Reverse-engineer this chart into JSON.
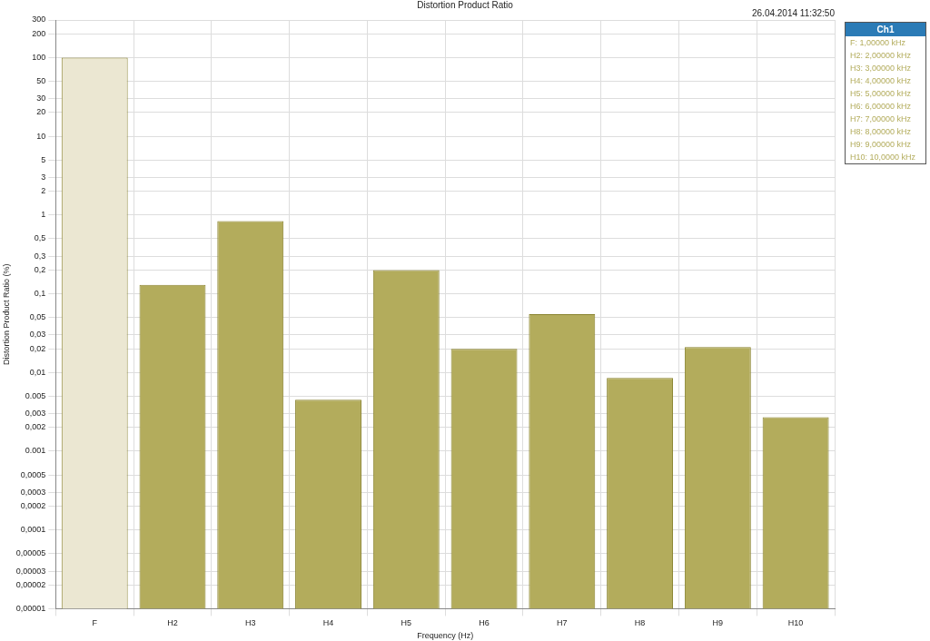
{
  "chart_data": {
    "type": "bar",
    "title": "Distortion Product Ratio",
    "xlabel": "Frequency (Hz)",
    "ylabel": "Distortion Product Ratio (%)",
    "categories": [
      "F",
      "H2",
      "H3",
      "H4",
      "H5",
      "H6",
      "H7",
      "H8",
      "H9",
      "H10"
    ],
    "series": [
      {
        "name": "Ch1",
        "color": "#b3ac5c",
        "colors": [
          "#ebe7d2",
          "#b3ac5c",
          "#b3ac5c",
          "#b3ac5c",
          "#b3ac5c",
          "#b3ac5c",
          "#b3ac5c",
          "#b3ac5c",
          "#b3ac5c",
          "#b3ac5c"
        ],
        "values": [
          100,
          0.13,
          0.84,
          0.0045,
          0.2,
          0.02,
          0.055,
          0.0085,
          0.021,
          0.0027
        ]
      }
    ],
    "log": "y",
    "ylim": [
      1e-05,
      300
    ],
    "yticks": [
      300,
      200,
      100,
      50,
      30,
      20,
      10,
      5,
      3,
      2,
      1,
      {
        "value": 0.5,
        "label": "0,5"
      },
      {
        "value": 0.3,
        "label": "0,3"
      },
      {
        "value": 0.2,
        "label": "0,2"
      },
      {
        "value": 0.1,
        "label": "0,1"
      },
      {
        "value": 0.05,
        "label": "0,05"
      },
      {
        "value": 0.03,
        "label": "0,03"
      },
      {
        "value": 0.02,
        "label": "0,02"
      },
      {
        "value": 0.01,
        "label": "0,01"
      },
      {
        "value": 0.005,
        "label": "0.005"
      },
      {
        "value": 0.003,
        "label": "0,003"
      },
      {
        "value": 0.002,
        "label": "0,002"
      },
      {
        "value": 0.001,
        "label": "0.001"
      },
      {
        "value": 0.0005,
        "label": "0,0005"
      },
      {
        "value": 0.0003,
        "label": "0,0003"
      },
      {
        "value": 0.0002,
        "label": "0,0002"
      },
      {
        "value": 0.0001,
        "label": "0,0001"
      },
      {
        "value": 5e-05,
        "label": "0,00005"
      },
      {
        "value": 3e-05,
        "label": "0,00003"
      },
      {
        "value": 2e-05,
        "label": "0,00002"
      },
      {
        "value": 1e-05,
        "label": "0,00001"
      }
    ],
    "grid": true,
    "legend": "right",
    "annotations": [
      "26.04.2014 11:32:50",
      "F: 1,00000 kHz",
      "H2: 2,00000 kHz",
      "H3: 3,00000 kHz",
      "H4: 4,00000 kHz",
      "H5: 5,00000 kHz",
      "H6: 6,00000 kHz",
      "H7: 7,00000 kHz",
      "H8: 8,00000 kHz",
      "H9: 9,00000 kHz",
      "H10: 10,0000 kHz"
    ]
  }
}
